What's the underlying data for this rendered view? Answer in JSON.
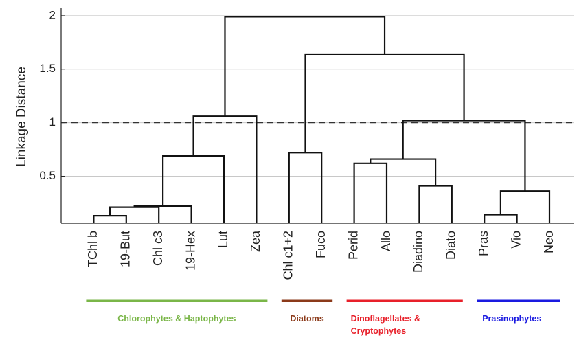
{
  "chart_data": {
    "type": "dendrogram",
    "y_label": "Linkage Distance",
    "leaves": [
      "TChl b",
      "19-But",
      "Chl c3",
      "19-Hex",
      "Lut",
      "Zea",
      "Chl c1+2",
      "Fuco",
      "Perid",
      "Allo",
      "Diadino",
      "Diato",
      "Pras",
      "Vio",
      "Neo"
    ],
    "links": [
      {
        "children": [
          0,
          1
        ],
        "height": 0.13
      },
      {
        "children": [
          15,
          2
        ],
        "height": 0.21
      },
      {
        "children": [
          16,
          3
        ],
        "height": 0.22
      },
      {
        "children": [
          17,
          4
        ],
        "height": 0.69
      },
      {
        "children": [
          18,
          5
        ],
        "height": 1.06
      },
      {
        "children": [
          6,
          7
        ],
        "height": 0.72
      },
      {
        "children": [
          8,
          9
        ],
        "height": 0.62
      },
      {
        "children": [
          10,
          11
        ],
        "height": 0.41
      },
      {
        "children": [
          21,
          22
        ],
        "height": 0.66
      },
      {
        "children": [
          12,
          13
        ],
        "height": 0.14
      },
      {
        "children": [
          24,
          14
        ],
        "height": 0.36
      },
      {
        "children": [
          23,
          25
        ],
        "height": 1.02
      },
      {
        "children": [
          20,
          26
        ],
        "height": 1.64
      },
      {
        "children": [
          19,
          27
        ],
        "height": 1.99
      }
    ],
    "threshold": 1,
    "ylim": [
      0.06,
      2.07
    ],
    "yticks": [
      0.5,
      1,
      1.5,
      2
    ],
    "grid": true,
    "groups": [
      {
        "name": "Chlorophytes & Haptophytes",
        "color": "#7ab648",
        "leaves": [
          0,
          5
        ]
      },
      {
        "name": "Diatoms",
        "color": "#8b3a1a",
        "leaves": [
          6,
          7
        ]
      },
      {
        "name": "Dinoflagellates & Cryptophytes",
        "color": "#e8202a",
        "leaves": [
          8,
          11
        ]
      },
      {
        "name": "Prasinophytes",
        "color": "#1a1ae0",
        "leaves": [
          12,
          14
        ]
      }
    ]
  }
}
